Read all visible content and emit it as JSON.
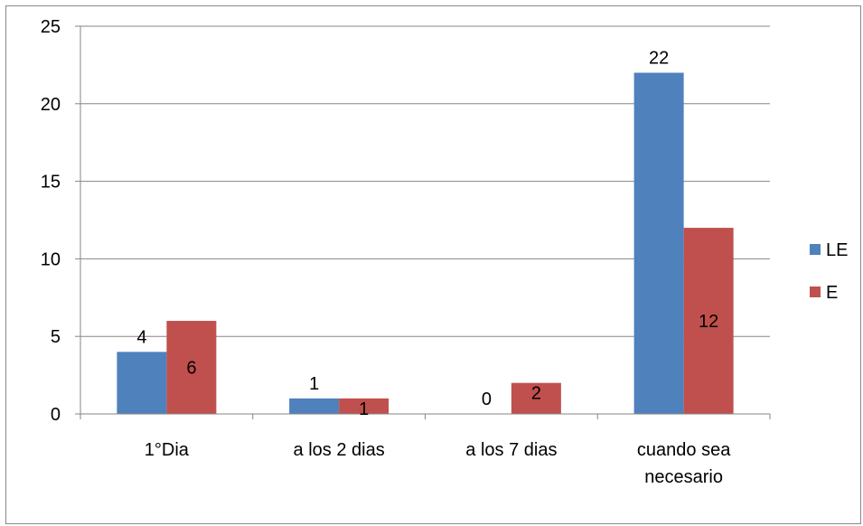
{
  "chart_data": {
    "type": "bar",
    "categories": [
      [
        "1°Dia"
      ],
      [
        "a los 2 dias"
      ],
      [
        "a los 7 dias"
      ],
      [
        "cuando sea",
        "necesario"
      ]
    ],
    "series": [
      {
        "name": "LE",
        "color": "#4F81BD",
        "values": [
          4,
          1,
          0,
          22
        ]
      },
      {
        "name": "E",
        "color": "#C0504D",
        "values": [
          6,
          1,
          2,
          12
        ]
      }
    ],
    "ylim": [
      0,
      25
    ],
    "yticks": [
      0,
      5,
      10,
      15,
      20,
      25
    ],
    "grid": true,
    "legend": "right",
    "data_labels": true
  }
}
